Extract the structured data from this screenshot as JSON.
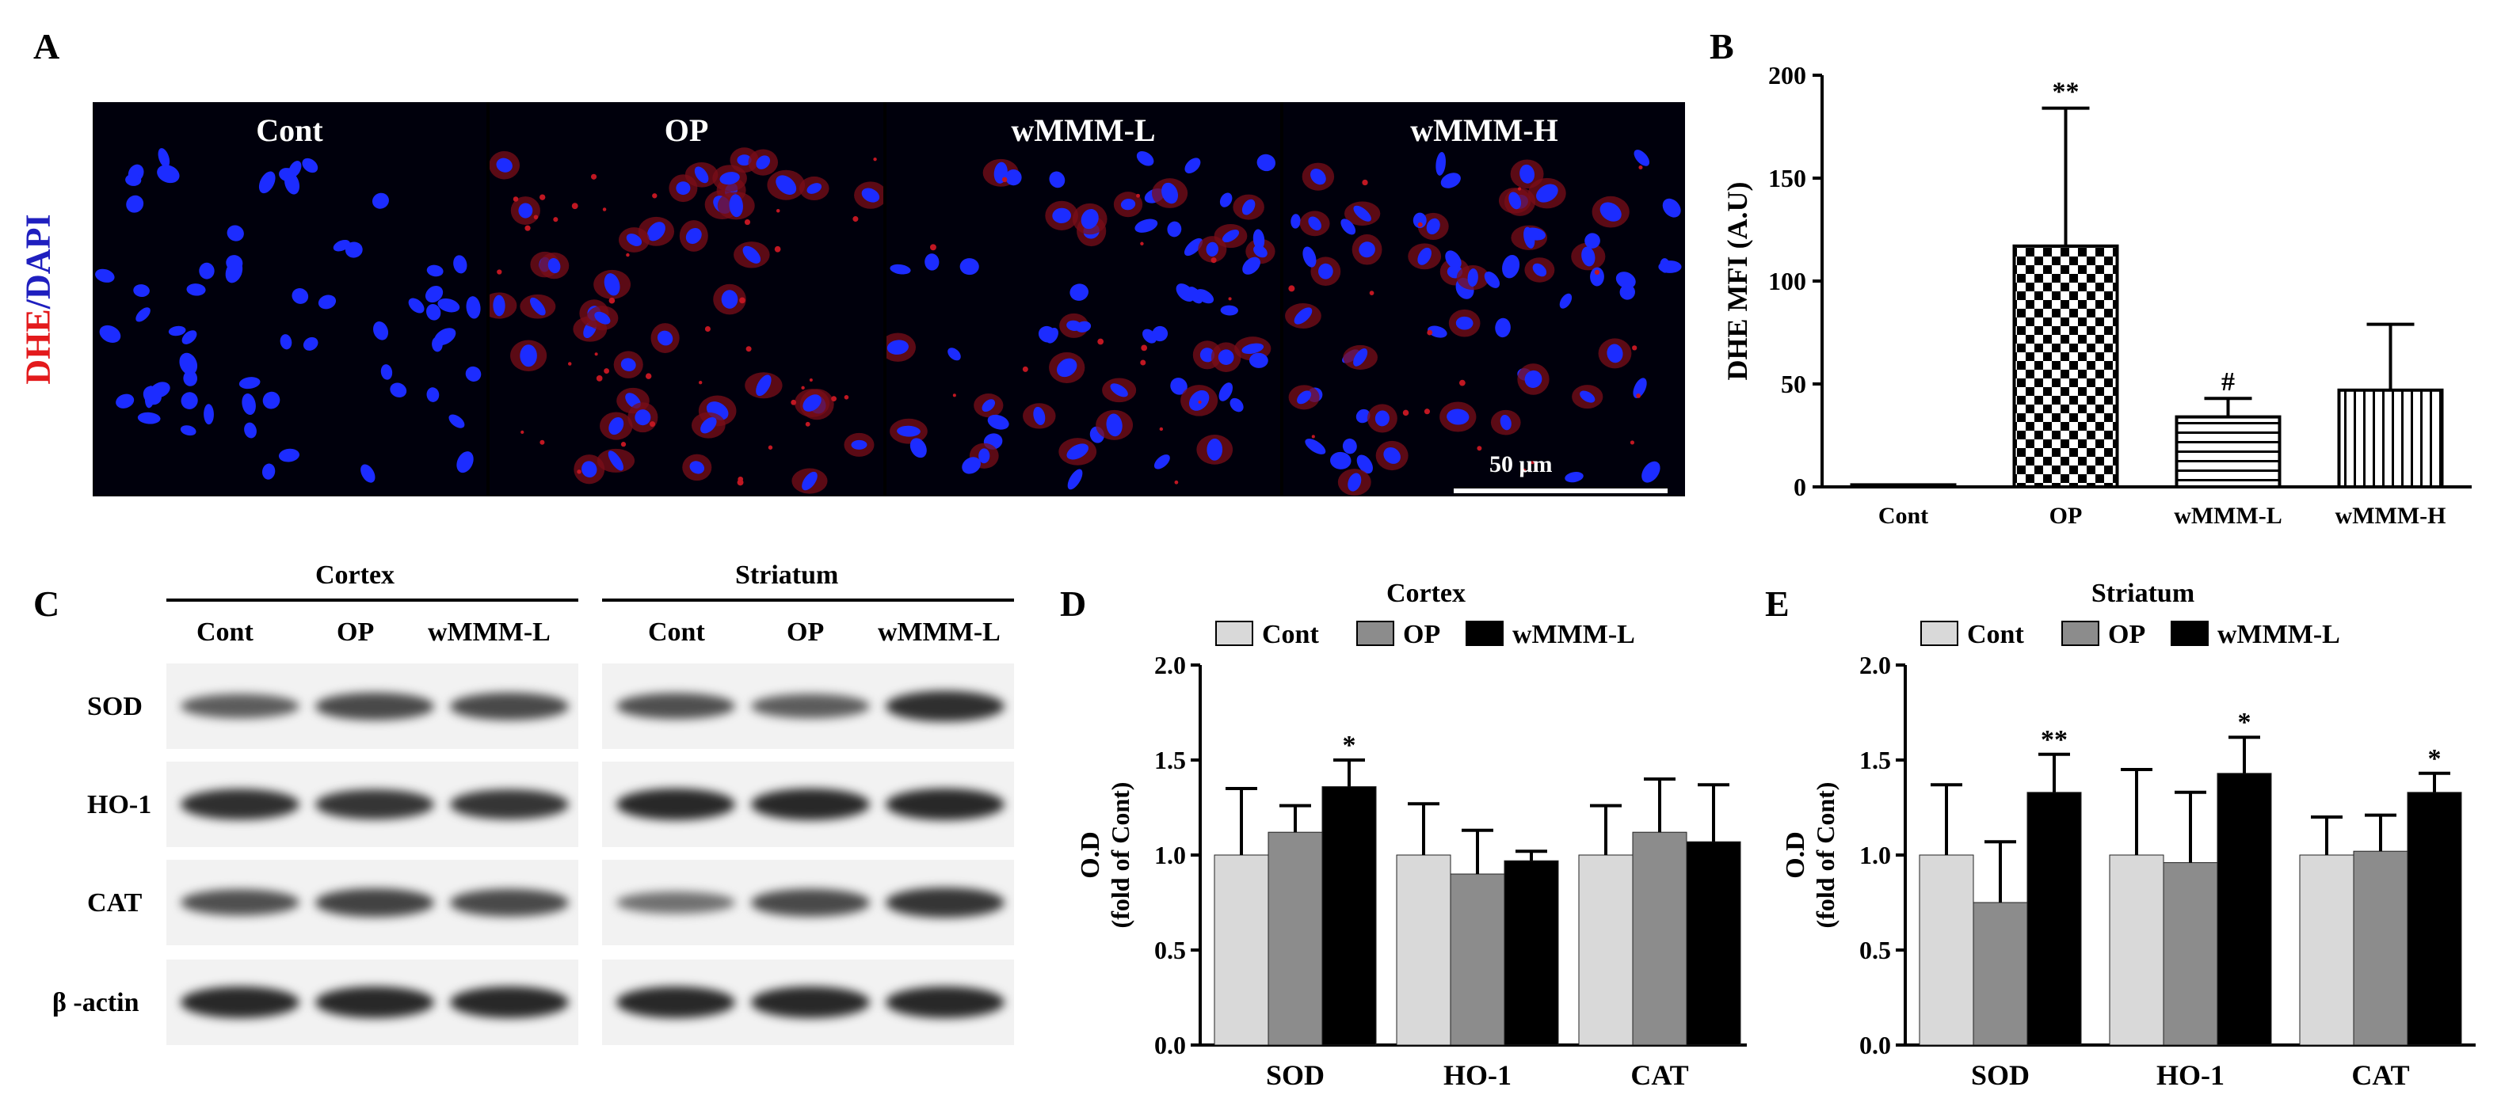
{
  "panel_labels": {
    "a": "A",
    "b": "B",
    "c": "C",
    "d": "D",
    "e": "E"
  },
  "panel_a": {
    "y_label_red": "DHE",
    "y_label_sep": "/",
    "y_label_blue": "DAPI",
    "panels": [
      "Cont",
      "OP",
      "wMMM-L",
      "wMMM-H"
    ],
    "scale_bar": "50 μm"
  },
  "panel_c": {
    "regions": [
      "Cortex",
      "Striatum"
    ],
    "lanes": [
      "Cont",
      "OP",
      "wMMM-L"
    ],
    "rows": [
      "SOD",
      "HO-1",
      "CAT",
      "β -actin"
    ]
  },
  "chart_data": [
    {
      "type": "bar",
      "panel": "B",
      "categories": [
        "Cont",
        "OP",
        "wMMM-L",
        "wMMM-H"
      ],
      "values": [
        1,
        117,
        34,
        47
      ],
      "errors": [
        0,
        67,
        9,
        32
      ],
      "annotations": [
        "",
        "**",
        "#",
        ""
      ],
      "ylabel": "DHE MFI (A.U)",
      "xlabel": "",
      "ylim": [
        0,
        200
      ],
      "yticks": [
        0,
        50,
        100,
        150,
        200
      ],
      "patterns": [
        "solid-white",
        "checkerboard",
        "horizontal-lines",
        "vertical-lines"
      ]
    },
    {
      "type": "bar",
      "panel": "D",
      "title": "Cortex",
      "categories": [
        "SOD",
        "HO-1",
        "CAT"
      ],
      "series": [
        {
          "name": "Cont",
          "values": [
            1.0,
            1.0,
            1.0
          ],
          "errors": [
            0.35,
            0.27,
            0.26
          ],
          "annotations": [
            "",
            "",
            ""
          ]
        },
        {
          "name": "OP",
          "values": [
            1.12,
            0.9,
            1.12
          ],
          "errors": [
            0.14,
            0.23,
            0.28
          ],
          "annotations": [
            "",
            "",
            ""
          ]
        },
        {
          "name": "wMMM-L",
          "values": [
            1.36,
            0.97,
            1.07
          ],
          "errors": [
            0.14,
            0.05,
            0.3
          ],
          "annotations": [
            "*",
            "",
            ""
          ]
        }
      ],
      "ylabel": "O.D",
      "ylabel2": "(fold of Cont)",
      "ylim": [
        0,
        2.0
      ],
      "yticks": [
        "0.0",
        "0.5",
        "1.0",
        "1.5",
        "2.0"
      ],
      "colors": [
        "#d9d9d9",
        "#8c8c8c",
        "#000000"
      ],
      "legend_position": "top"
    },
    {
      "type": "bar",
      "panel": "E",
      "title": "Striatum",
      "categories": [
        "SOD",
        "HO-1",
        "CAT"
      ],
      "series": [
        {
          "name": "Cont",
          "values": [
            1.0,
            1.0,
            1.0
          ],
          "errors": [
            0.37,
            0.45,
            0.2
          ],
          "annotations": [
            "",
            "",
            ""
          ]
        },
        {
          "name": "OP",
          "values": [
            0.75,
            0.96,
            1.02
          ],
          "errors": [
            0.32,
            0.37,
            0.19
          ],
          "annotations": [
            "",
            "",
            ""
          ]
        },
        {
          "name": "wMMM-L",
          "values": [
            1.33,
            1.43,
            1.33
          ],
          "errors": [
            0.2,
            0.19,
            0.1
          ],
          "annotations": [
            "**",
            "*",
            "*"
          ]
        }
      ],
      "ylabel": "O.D",
      "ylabel2": "(fold of Cont)",
      "ylim": [
        0,
        2.0
      ],
      "yticks": [
        "0.0",
        "0.5",
        "1.0",
        "1.5",
        "2.0"
      ],
      "colors": [
        "#d9d9d9",
        "#8c8c8c",
        "#000000"
      ],
      "legend_position": "top"
    }
  ]
}
